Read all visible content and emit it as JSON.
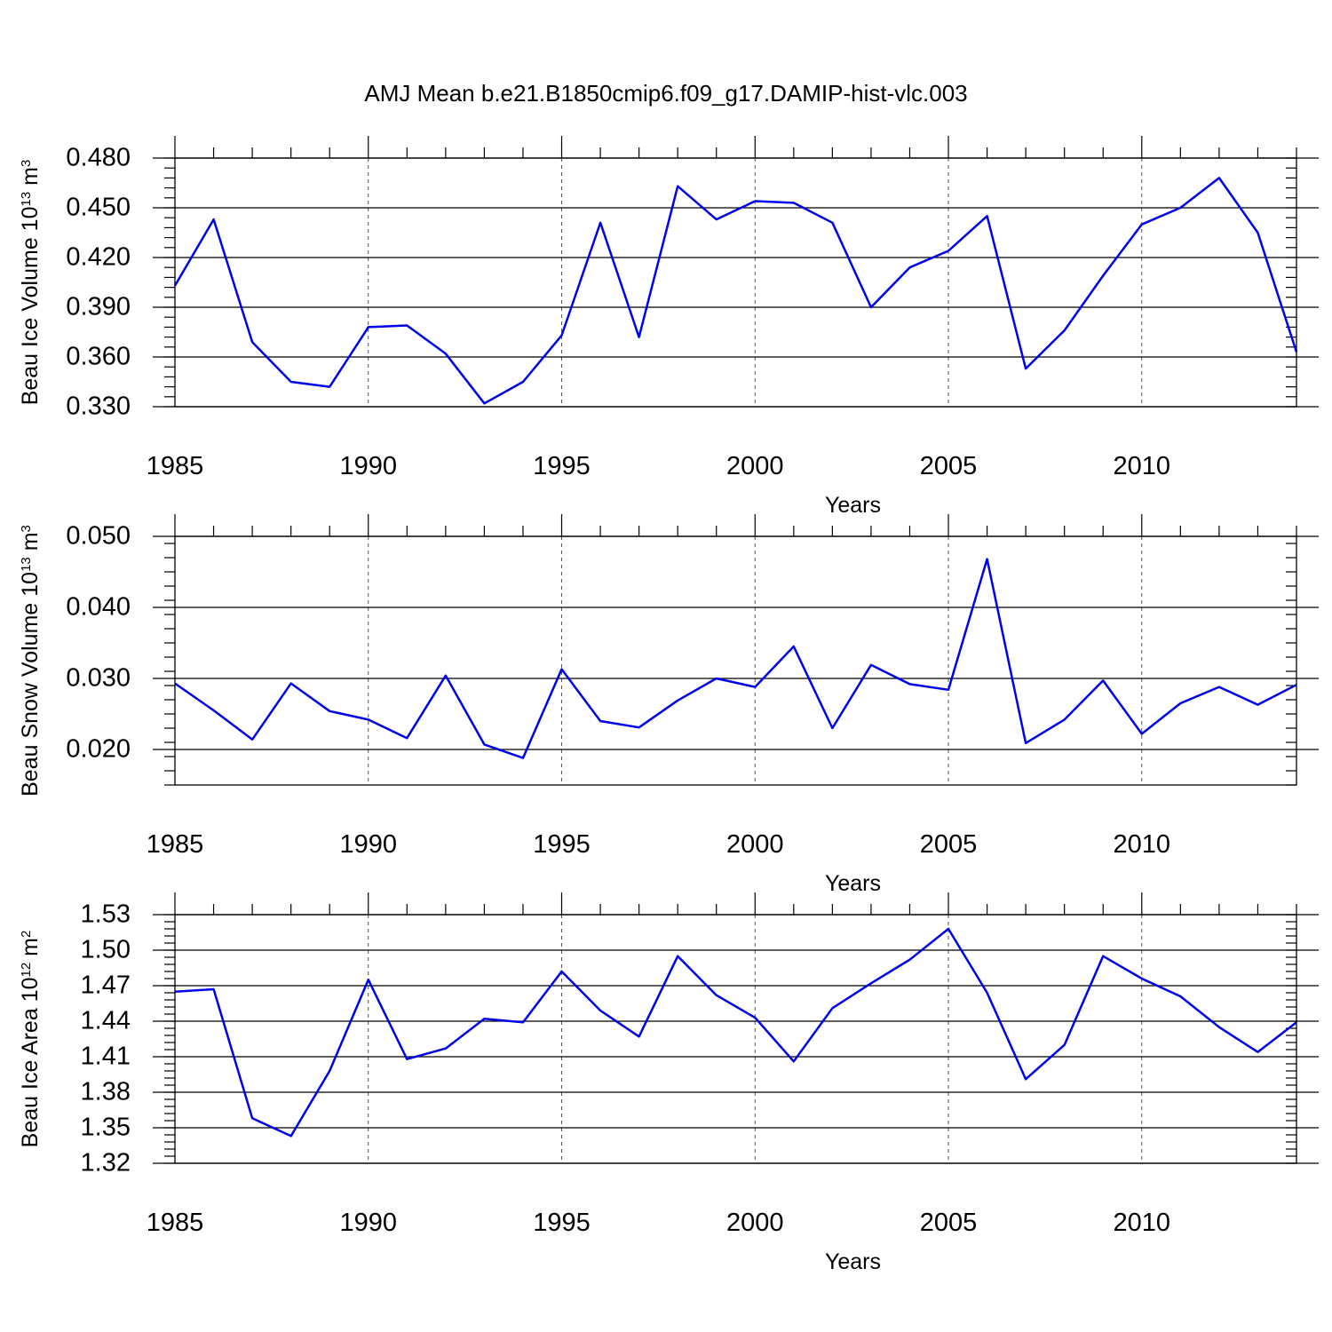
{
  "title": "AMJ Mean b.e21.B1850cmip6.f09_g17.DAMIP-hist-vlc.003",
  "line_color": "#0000ee",
  "chart_data": [
    {
      "type": "line",
      "ylabel_main": "Beau Ice Volume 10",
      "ylabel_exp": "13",
      "ylabel_unit": "m",
      "ylabel_unit_exp": "3",
      "xlabel": "Years",
      "xlim": [
        1985,
        2014
      ],
      "ylim": [
        0.33,
        0.48
      ],
      "yticks": [
        0.33,
        0.36,
        0.39,
        0.42,
        0.45,
        0.48
      ],
      "ytick_labels": [
        "0.330",
        "0.360",
        "0.390",
        "0.420",
        "0.450",
        "0.480"
      ],
      "xticks": [
        1985,
        1990,
        1995,
        2000,
        2005,
        2010
      ],
      "xtick_labels": [
        "1985",
        "1990",
        "1995",
        "2000",
        "2005",
        "2010"
      ],
      "x": [
        1985,
        1986,
        1987,
        1988,
        1989,
        1990,
        1991,
        1992,
        1993,
        1994,
        1995,
        1996,
        1997,
        1998,
        1999,
        2000,
        2001,
        2002,
        2003,
        2004,
        2005,
        2006,
        2007,
        2008,
        2009,
        2010,
        2011,
        2012,
        2013,
        2014
      ],
      "values": [
        0.403,
        0.443,
        0.369,
        0.345,
        0.342,
        0.378,
        0.379,
        0.362,
        0.332,
        0.345,
        0.373,
        0.441,
        0.372,
        0.463,
        0.443,
        0.454,
        0.453,
        0.441,
        0.39,
        0.414,
        0.424,
        0.445,
        0.353,
        0.376,
        0.409,
        0.44,
        0.45,
        0.468,
        0.435,
        0.363
      ]
    },
    {
      "type": "line",
      "ylabel_main": "Beau Snow Volume 10",
      "ylabel_exp": "13",
      "ylabel_unit": "m",
      "ylabel_unit_exp": "3",
      "xlabel": "Years",
      "xlim": [
        1985,
        2014
      ],
      "ylim": [
        0.015,
        0.05
      ],
      "yticks": [
        0.02,
        0.03,
        0.04,
        0.05
      ],
      "ytick_labels": [
        "0.020",
        "0.030",
        "0.040",
        "0.050"
      ],
      "xticks": [
        1985,
        1990,
        1995,
        2000,
        2005,
        2010
      ],
      "xtick_labels": [
        "1985",
        "1990",
        "1995",
        "2000",
        "2005",
        "2010"
      ],
      "x": [
        1985,
        1986,
        1987,
        1988,
        1989,
        1990,
        1991,
        1992,
        1993,
        1994,
        1995,
        1996,
        1997,
        1998,
        1999,
        2000,
        2001,
        2002,
        2003,
        2004,
        2005,
        2006,
        2007,
        2008,
        2009,
        2010,
        2011,
        2012,
        2013,
        2014
      ],
      "values": [
        0.0293,
        0.0255,
        0.0214,
        0.0293,
        0.0254,
        0.0242,
        0.0216,
        0.0304,
        0.0207,
        0.0188,
        0.0313,
        0.024,
        0.0231,
        0.0269,
        0.03,
        0.0288,
        0.0345,
        0.023,
        0.0319,
        0.0292,
        0.0284,
        0.0468,
        0.0209,
        0.0242,
        0.0297,
        0.0222,
        0.0265,
        0.0288,
        0.0263,
        0.0291
      ]
    },
    {
      "type": "line",
      "ylabel_main": "Beau Ice Area 10",
      "ylabel_exp": "12",
      "ylabel_unit": "m",
      "ylabel_unit_exp": "2",
      "xlabel": "Years",
      "xlim": [
        1985,
        2014
      ],
      "ylim": [
        1.32,
        1.53
      ],
      "yticks": [
        1.32,
        1.35,
        1.38,
        1.41,
        1.44,
        1.47,
        1.5,
        1.53
      ],
      "ytick_labels": [
        "1.32",
        "1.35",
        "1.38",
        "1.41",
        "1.44",
        "1.47",
        "1.50",
        "1.53"
      ],
      "xticks": [
        1985,
        1990,
        1995,
        2000,
        2005,
        2010
      ],
      "xtick_labels": [
        "1985",
        "1990",
        "1995",
        "2000",
        "2005",
        "2010"
      ],
      "x": [
        1985,
        1986,
        1987,
        1988,
        1989,
        1990,
        1991,
        1992,
        1993,
        1994,
        1995,
        1996,
        1997,
        1998,
        1999,
        2000,
        2001,
        2002,
        2003,
        2004,
        2005,
        2006,
        2007,
        2008,
        2009,
        2010,
        2011,
        2012,
        2013,
        2014
      ],
      "values": [
        1.465,
        1.467,
        1.358,
        1.343,
        1.398,
        1.475,
        1.408,
        1.417,
        1.442,
        1.439,
        1.482,
        1.449,
        1.427,
        1.495,
        1.462,
        1.443,
        1.406,
        1.451,
        1.472,
        1.492,
        1.518,
        1.464,
        1.391,
        1.42,
        1.495,
        1.476,
        1.461,
        1.435,
        1.414,
        1.439
      ]
    }
  ]
}
